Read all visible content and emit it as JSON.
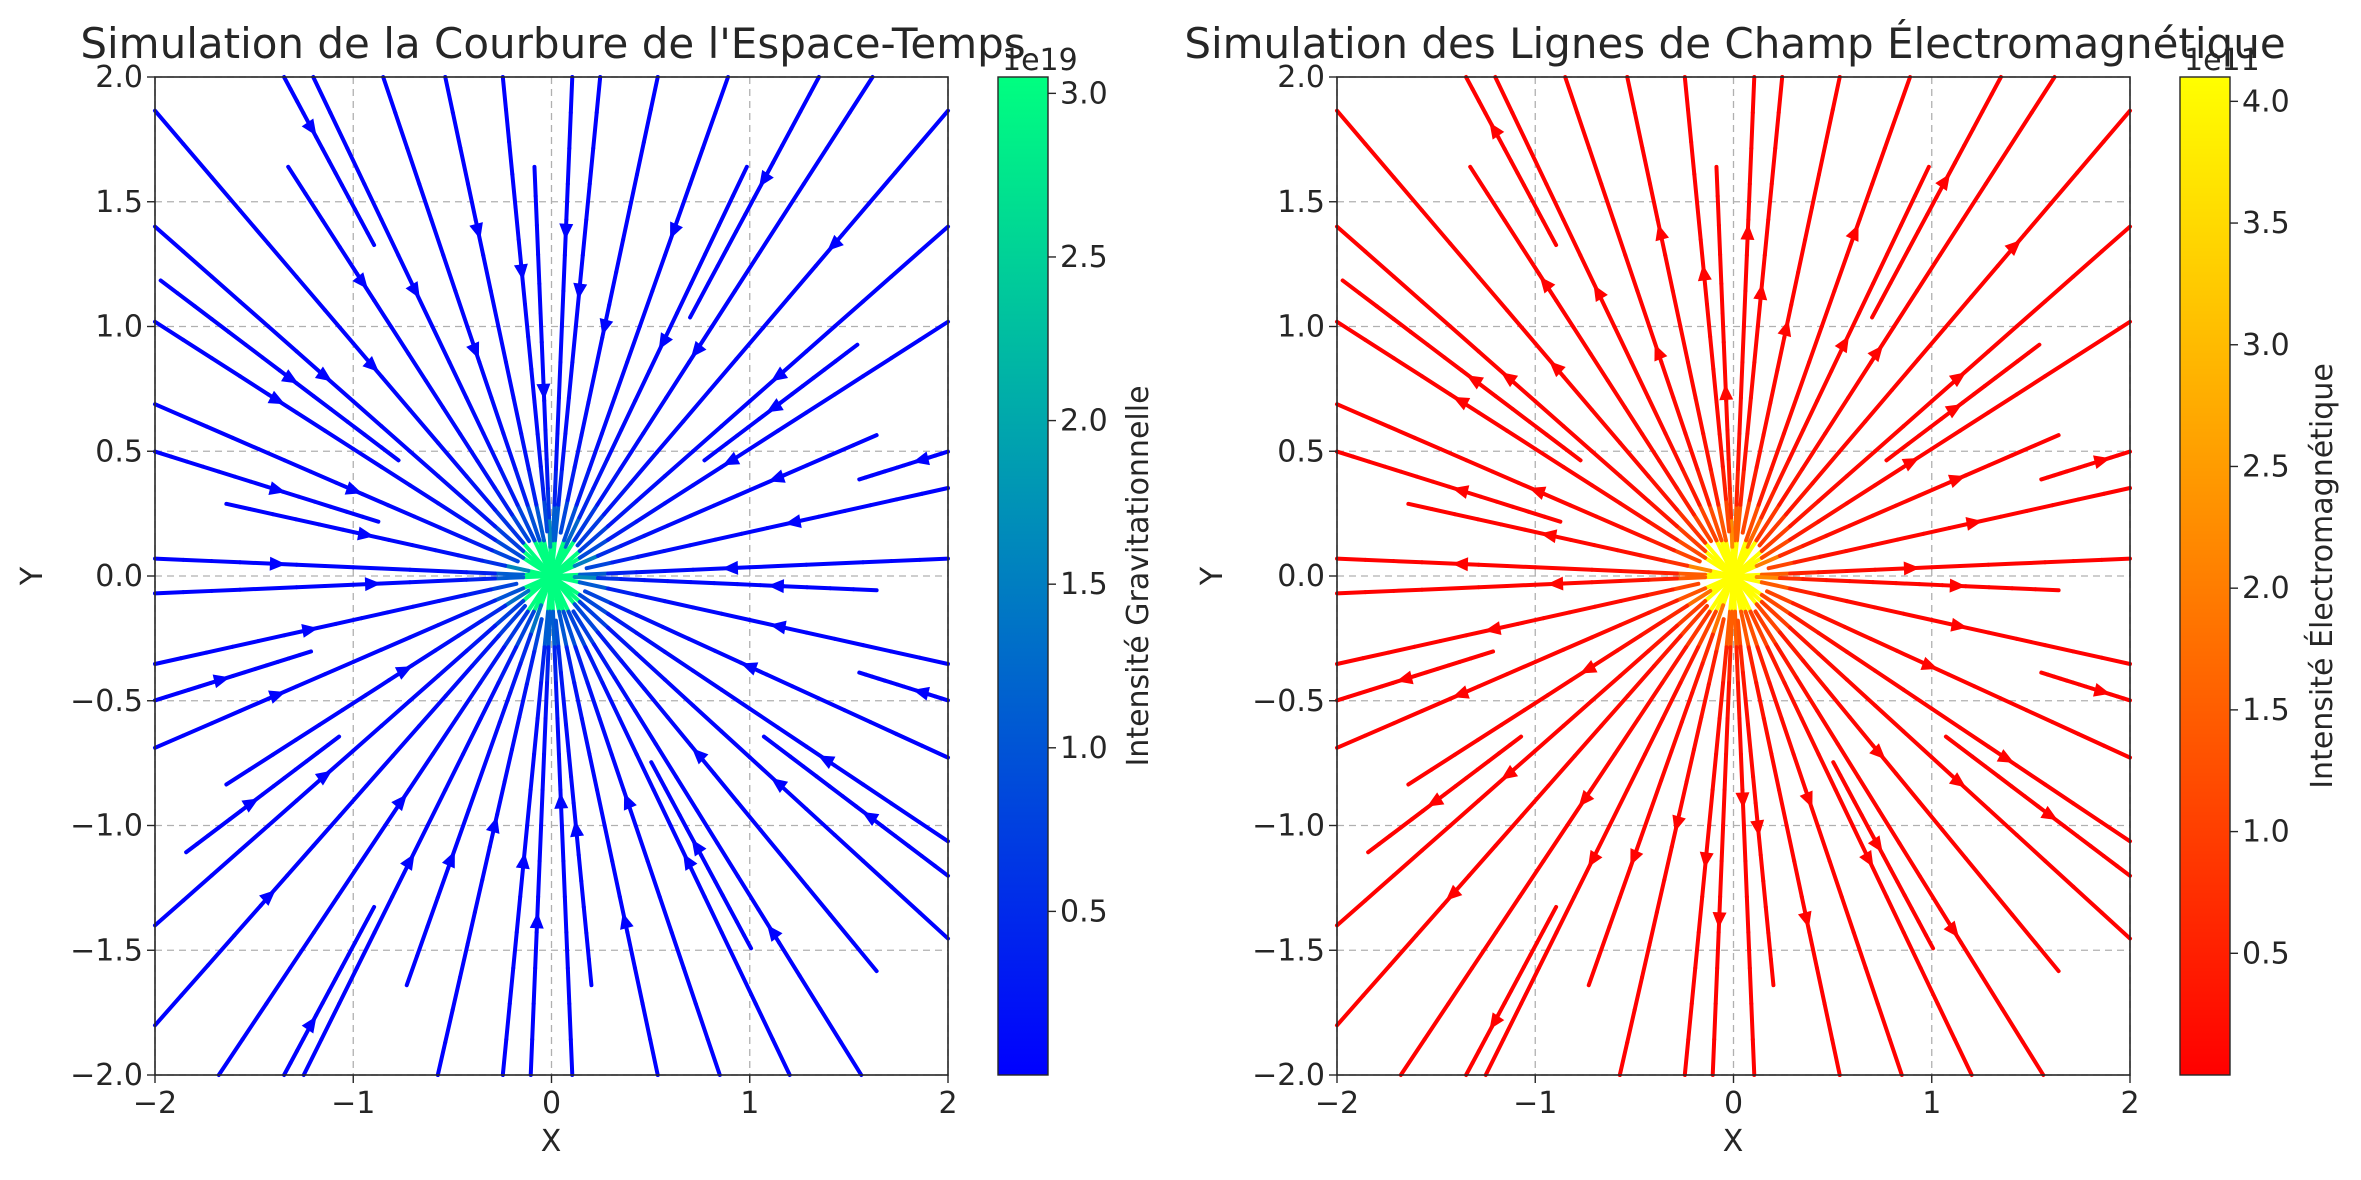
{
  "chart_data": [
    {
      "type": "streamplot",
      "title": "Simulation de la Courbure de l'Espace-Temps",
      "xlabel": "X",
      "ylabel": "Y",
      "xlim": [
        -2,
        2
      ],
      "ylim": [
        -2,
        2
      ],
      "xticks": [
        "−2",
        "−1",
        "0",
        "1",
        "2"
      ],
      "yticks": [
        "−2.0",
        "−1.5",
        "−1.0",
        "−0.5",
        "0.0",
        "0.5",
        "1.0",
        "1.5",
        "2.0"
      ],
      "grid": true,
      "source": [
        0,
        0
      ],
      "direction": "inward",
      "colorbar": {
        "label": "Intensité Gravitationnelle",
        "multiplier": "1e19",
        "min": 0,
        "max": 3.05,
        "ticks": [
          "0.5",
          "1.0",
          "1.5",
          "2.0",
          "2.5",
          "3.0"
        ],
        "colors": [
          "#0000ff",
          "#0080c0",
          "#00ff80"
        ]
      }
    },
    {
      "type": "streamplot",
      "title": "Simulation des Lignes de Champ Électromagnétique",
      "xlabel": "X",
      "ylabel": "Y",
      "xlim": [
        -2,
        2
      ],
      "ylim": [
        -2,
        2
      ],
      "xticks": [
        "−2",
        "−1",
        "0",
        "1",
        "2"
      ],
      "yticks": [
        "−2.0",
        "−1.5",
        "−1.0",
        "−0.5",
        "0.0",
        "0.5",
        "1.0",
        "1.5",
        "2.0"
      ],
      "grid": true,
      "source": [
        0,
        0
      ],
      "direction": "outward",
      "colorbar": {
        "label": "Intensité Électromagnétique",
        "multiplier": "1e11",
        "min": 0,
        "max": 4.1,
        "ticks": [
          "0.5",
          "1.0",
          "1.5",
          "2.0",
          "2.5",
          "3.0",
          "3.5",
          "4.0"
        ],
        "colors": [
          "#ff0000",
          "#ff8000",
          "#ffff00"
        ]
      }
    }
  ]
}
